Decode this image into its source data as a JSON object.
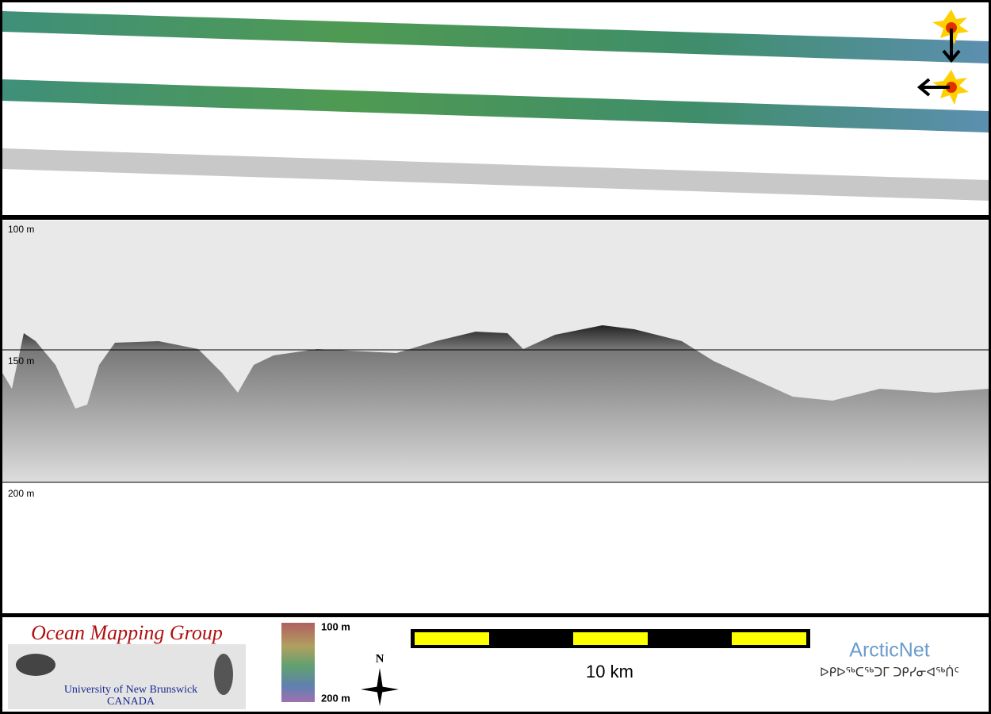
{
  "profile": {
    "depth_labels": [
      "100 m",
      "150 m",
      "200 m"
    ]
  },
  "footer": {
    "logo_title": "Ocean Mapping Group",
    "logo_university": "University of New Brunswick",
    "logo_country": "CANADA",
    "colorbar": {
      "top": "100 m",
      "bottom": "200 m"
    },
    "north": "N",
    "scale_label": "10 km",
    "partner_name": "ArcticNet",
    "partner_syllabics": "ᐅᑭᐅᖅᑕᖅᑐᒥ ᑐᑭᓯᓂᐊᖅᑏᑦ"
  }
}
